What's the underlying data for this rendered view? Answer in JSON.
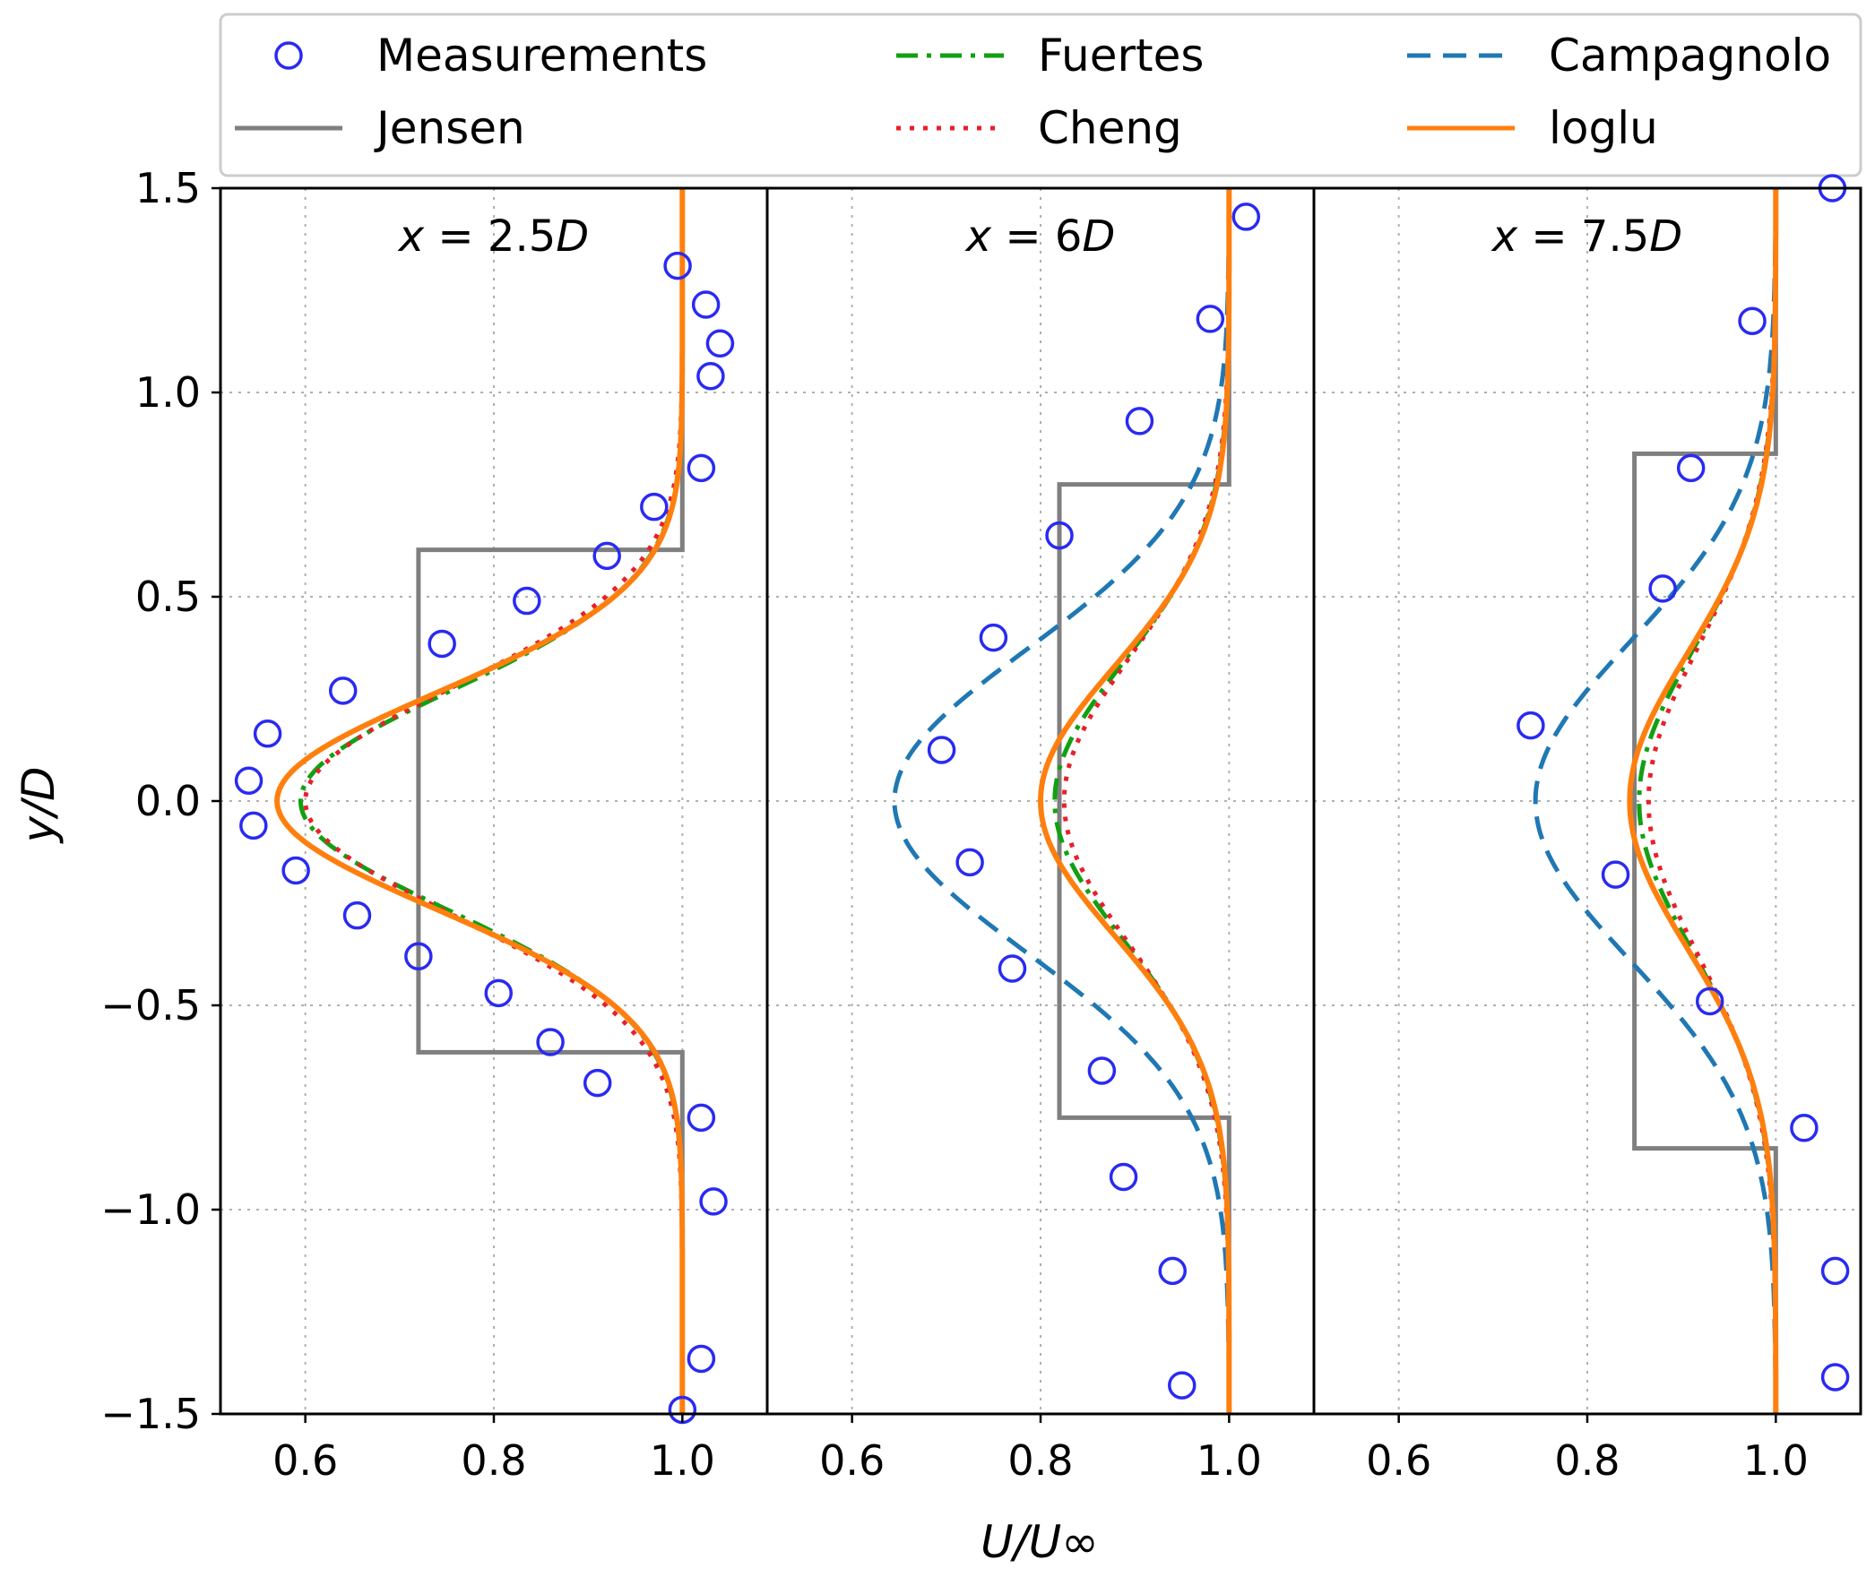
{
  "figure": {
    "ylabel": "y/D",
    "xlabel": "U/U∞"
  },
  "legend": {
    "items": [
      {
        "label": "Measurements",
        "key": "meas",
        "style": "circle",
        "color": "#2a2af2"
      },
      {
        "label": "Fuertes",
        "key": "fuertes",
        "style": "dashdot",
        "color": "#12a012"
      },
      {
        "label": "Campagnolo",
        "key": "campagnolo",
        "style": "dashed",
        "color": "#1f78b4"
      },
      {
        "label": "Jensen",
        "key": "jensen",
        "style": "solid",
        "color": "#7f7f7f"
      },
      {
        "label": "Cheng",
        "key": "cheng",
        "style": "dotted",
        "color": "#e8202a"
      },
      {
        "label": "loglu",
        "key": "loglu",
        "style": "solid",
        "color": "#ff7f0e"
      }
    ]
  },
  "chart_data": {
    "type": "line",
    "grid": true,
    "legend_position": "top",
    "xticks": [
      "0.6",
      "0.8",
      "1.0"
    ],
    "yticks": [
      "1.5",
      "1.0",
      "0.5",
      "0.0",
      "−0.5",
      "−1.0",
      "−1.5"
    ],
    "panels": [
      {
        "title_lhs": "x",
        "title_rhs": "2.5D",
        "xlim": [
          0.51,
          1.09
        ],
        "ylim": [
          -1.5,
          1.5
        ],
        "measurements": [
          {
            "x": 0.54,
            "y": 0.05
          },
          {
            "x": 0.545,
            "y": -0.06
          },
          {
            "x": 0.56,
            "y": 0.165
          },
          {
            "x": 0.59,
            "y": -0.17
          },
          {
            "x": 0.64,
            "y": 0.27
          },
          {
            "x": 0.655,
            "y": -0.28
          },
          {
            "x": 0.72,
            "y": -0.38
          },
          {
            "x": 0.745,
            "y": 0.385
          },
          {
            "x": 0.805,
            "y": -0.47
          },
          {
            "x": 0.835,
            "y": 0.49
          },
          {
            "x": 0.86,
            "y": -0.59
          },
          {
            "x": 0.91,
            "y": -0.69
          },
          {
            "x": 0.92,
            "y": 0.6
          },
          {
            "x": 0.97,
            "y": 0.72
          },
          {
            "x": 0.995,
            "y": 1.31
          },
          {
            "x": 1.02,
            "y": 0.815
          },
          {
            "x": 1.025,
            "y": 1.215
          },
          {
            "x": 1.03,
            "y": 1.04
          },
          {
            "x": 1.04,
            "y": 1.12
          },
          {
            "x": 1.02,
            "y": -0.775
          },
          {
            "x": 1.033,
            "y": -0.98
          },
          {
            "x": 1.02,
            "y": -1.365
          },
          {
            "x": 1.0,
            "y": -1.49
          }
        ],
        "jensen": {
          "deficit_value": 0.72,
          "edge": 0.615,
          "free": 1.0
        },
        "fuertes": {
          "min": 0.595,
          "sigma": 0.27
        },
        "cheng": {
          "min": 0.6,
          "sigma": 0.28
        },
        "loglu": {
          "min": 0.57,
          "sigma": 0.265
        }
      },
      {
        "title_lhs": "x",
        "title_rhs": "6D",
        "xlim": [
          0.51,
          1.09
        ],
        "ylim": [
          -1.5,
          1.5
        ],
        "measurements": [
          {
            "x": 1.018,
            "y": 1.43
          },
          {
            "x": 0.98,
            "y": 1.18
          },
          {
            "x": 0.905,
            "y": 0.93
          },
          {
            "x": 0.82,
            "y": 0.65
          },
          {
            "x": 0.75,
            "y": 0.4
          },
          {
            "x": 0.695,
            "y": 0.125
          },
          {
            "x": 0.725,
            "y": -0.15
          },
          {
            "x": 0.77,
            "y": -0.41
          },
          {
            "x": 0.865,
            "y": -0.66
          },
          {
            "x": 0.888,
            "y": -0.92
          },
          {
            "x": 0.94,
            "y": -1.15
          },
          {
            "x": 0.95,
            "y": -1.43
          }
        ],
        "jensen": {
          "deficit_value": 0.82,
          "edge": 0.775,
          "free": 1.0
        },
        "fuertes": {
          "min": 0.815,
          "sigma": 0.34
        },
        "cheng": {
          "min": 0.825,
          "sigma": 0.35
        },
        "loglu": {
          "min": 0.8,
          "sigma": 0.33
        },
        "campagnolo": {
          "min": 0.645,
          "sigma": 0.37
        }
      },
      {
        "title_lhs": "x",
        "title_rhs": "7.5D",
        "xlim": [
          0.51,
          1.09
        ],
        "ylim": [
          -1.5,
          1.5
        ],
        "measurements": [
          {
            "x": 1.06,
            "y": 1.5
          },
          {
            "x": 0.975,
            "y": 1.175
          },
          {
            "x": 0.91,
            "y": 0.815
          },
          {
            "x": 0.88,
            "y": 0.52
          },
          {
            "x": 0.74,
            "y": 0.185
          },
          {
            "x": 0.83,
            "y": -0.18
          },
          {
            "x": 0.93,
            "y": -0.49
          },
          {
            "x": 1.03,
            "y": -0.8
          },
          {
            "x": 1.063,
            "y": -1.15
          },
          {
            "x": 1.063,
            "y": -1.41
          }
        ],
        "jensen": {
          "deficit_value": 0.85,
          "edge": 0.85,
          "free": 1.0
        },
        "fuertes": {
          "min": 0.855,
          "sigma": 0.37
        },
        "cheng": {
          "min": 0.865,
          "sigma": 0.38
        },
        "loglu": {
          "min": 0.845,
          "sigma": 0.36
        },
        "campagnolo": {
          "min": 0.745,
          "sigma": 0.39
        }
      }
    ]
  }
}
